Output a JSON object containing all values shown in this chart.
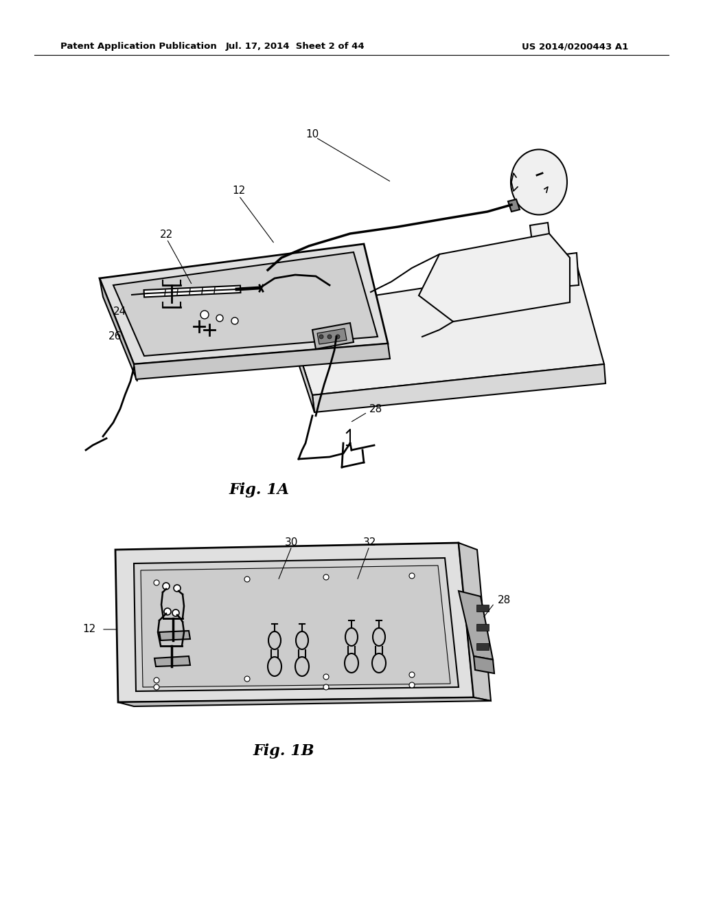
{
  "background_color": "#ffffff",
  "line_color": "#000000",
  "header_left": "Patent Application Publication",
  "header_center": "Jul. 17, 2014  Sheet 2 of 44",
  "header_right": "US 2014/0200443 A1",
  "fig1a_label": "Fig. 1A",
  "fig1b_label": "Fig. 1B",
  "label_10": "10",
  "label_12": "12",
  "label_22": "22",
  "label_24": "24",
  "label_26": "26",
  "label_28": "28",
  "label_30": "30",
  "label_32": "32"
}
